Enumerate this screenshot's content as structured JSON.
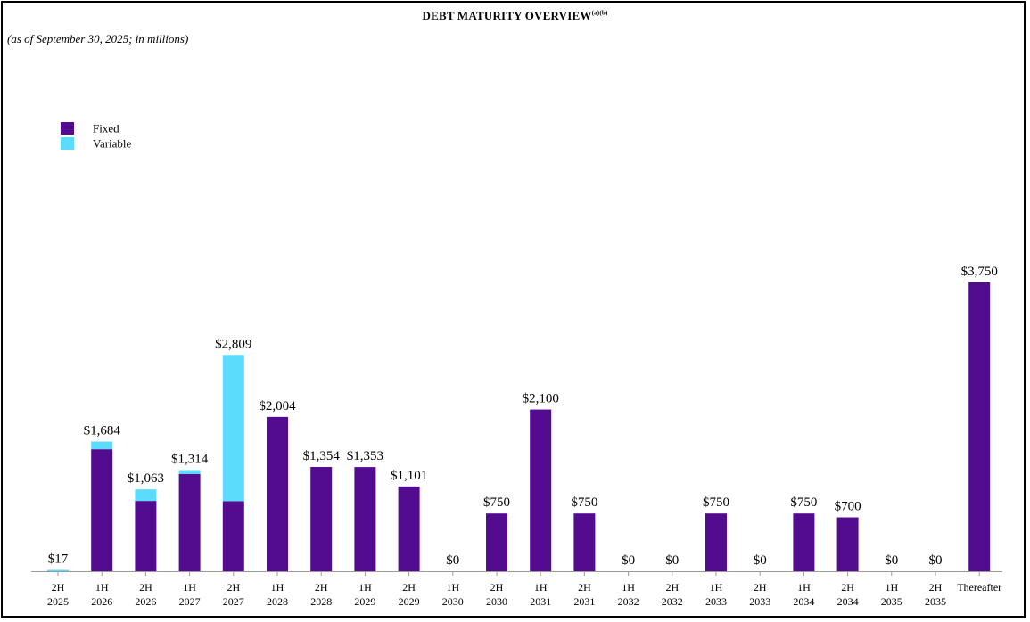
{
  "title": "DEBT MATURITY OVERVIEW",
  "title_superscript": "(a)(b)",
  "subtitle": "(as of September 30, 2025; in millions)",
  "colors": {
    "fixed": "#530c8f",
    "variable": "#5cdcfc",
    "axis": "#9a9a9a"
  },
  "chart_data": {
    "type": "bar",
    "stacked": true,
    "title": "DEBT MATURITY OVERVIEW",
    "xlabel": "",
    "ylabel": "",
    "ylim": [
      0,
      4000
    ],
    "grid": false,
    "legend_position": "top-left",
    "categories": [
      [
        "2H",
        "2025"
      ],
      [
        "1H",
        "2026"
      ],
      [
        "2H",
        "2026"
      ],
      [
        "1H",
        "2027"
      ],
      [
        "2H",
        "2027"
      ],
      [
        "1H",
        "2028"
      ],
      [
        "2H",
        "2028"
      ],
      [
        "1H",
        "2029"
      ],
      [
        "2H",
        "2029"
      ],
      [
        "1H",
        "2030"
      ],
      [
        "2H",
        "2030"
      ],
      [
        "1H",
        "2031"
      ],
      [
        "2H",
        "2031"
      ],
      [
        "1H",
        "2032"
      ],
      [
        "2H",
        "2032"
      ],
      [
        "1H",
        "2033"
      ],
      [
        "2H",
        "2033"
      ],
      [
        "1H",
        "2034"
      ],
      [
        "2H",
        "2034"
      ],
      [
        "1H",
        "2035"
      ],
      [
        "2H",
        "2035"
      ],
      [
        "Thereafter",
        ""
      ]
    ],
    "series": [
      {
        "name": "Fixed",
        "color": "#530c8f",
        "values": [
          0,
          1584,
          913,
          1264,
          909,
          2004,
          1354,
          1353,
          1101,
          0,
          750,
          2100,
          750,
          0,
          0,
          750,
          0,
          750,
          700,
          0,
          0,
          3750
        ]
      },
      {
        "name": "Variable",
        "color": "#5cdcfc",
        "values": [
          17,
          100,
          150,
          50,
          1900,
          0,
          0,
          0,
          0,
          0,
          0,
          0,
          0,
          0,
          0,
          0,
          0,
          0,
          0,
          0,
          0,
          0
        ]
      }
    ],
    "totals": [
      "$17",
      "$1,684",
      "$1,063",
      "$1,314",
      "$2,809",
      "$2,004",
      "$1,354",
      "$1,353",
      "$1,101",
      "$0",
      "$750",
      "$2,100",
      "$750",
      "$0",
      "$0",
      "$750",
      "$0",
      "$750",
      "$700",
      "$0",
      "$0",
      "$3,750"
    ]
  }
}
